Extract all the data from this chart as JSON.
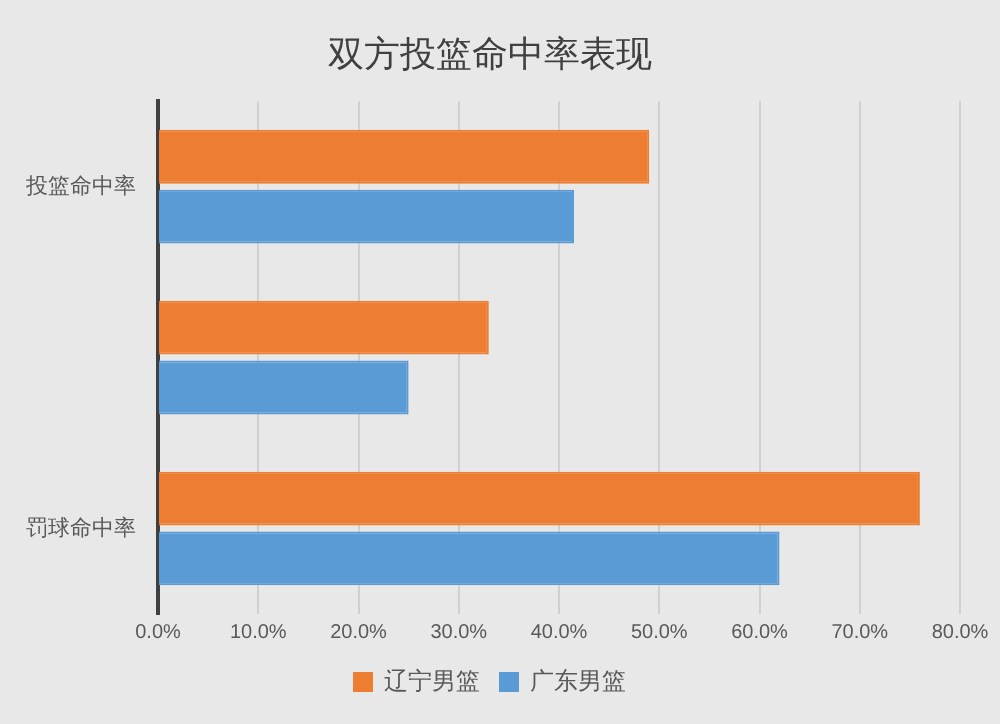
{
  "chart_data": {
    "type": "bar",
    "orientation": "horizontal",
    "title": "双方投篮命中率表现",
    "categories": [
      "投篮命中率",
      null,
      "罚球命中率"
    ],
    "series": [
      {
        "name": "辽宁男篮",
        "color": "#ed7d31",
        "values": [
          49,
          33,
          76
        ]
      },
      {
        "name": "广东男篮",
        "color": "#5b9bd5",
        "values": [
          41.5,
          25,
          62
        ]
      }
    ],
    "xlim": [
      0,
      80
    ],
    "xticks": [
      {
        "value": 0,
        "label": "0.0%"
      },
      {
        "value": 10,
        "label": "10.0%"
      },
      {
        "value": 20,
        "label": "20.0%"
      },
      {
        "value": 30,
        "label": "30.0%"
      },
      {
        "value": 40,
        "label": "40.0%"
      },
      {
        "value": 50,
        "label": "50.0%"
      },
      {
        "value": 60,
        "label": "60.0%"
      },
      {
        "value": 70,
        "label": "70.0%"
      },
      {
        "value": 80,
        "label": "80.0%"
      }
    ],
    "grid": "x",
    "legend": "bottom"
  }
}
